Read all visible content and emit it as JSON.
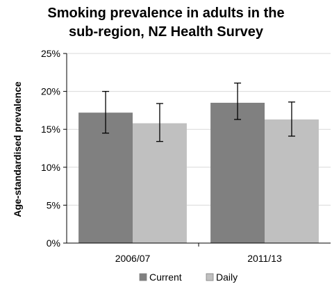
{
  "chart_data": {
    "type": "bar",
    "title_line1": "Smoking prevalence in adults in the",
    "title_line2": "sub-region, NZ Health Survey",
    "ylabel": "Age-standardised prevalence",
    "xlabel": "",
    "categories": [
      "2006/07",
      "2011/13"
    ],
    "series": [
      {
        "name": "Current",
        "color": "#808080",
        "values": [
          17.2,
          18.5
        ],
        "err_low": [
          14.5,
          16.3
        ],
        "err_high": [
          20.0,
          21.1
        ]
      },
      {
        "name": "Daily",
        "color": "#c0c0c0",
        "values": [
          15.8,
          16.3
        ],
        "err_low": [
          13.4,
          14.1
        ],
        "err_high": [
          18.4,
          18.6
        ]
      }
    ],
    "ylim": [
      0,
      25
    ],
    "yticks": [
      0,
      5,
      10,
      15,
      20,
      25
    ],
    "ytick_labels": [
      "0%",
      "5%",
      "10%",
      "15%",
      "20%",
      "25%"
    ],
    "grid": true,
    "gridline_color": "#d9d9d9",
    "legend_position": "bottom"
  }
}
